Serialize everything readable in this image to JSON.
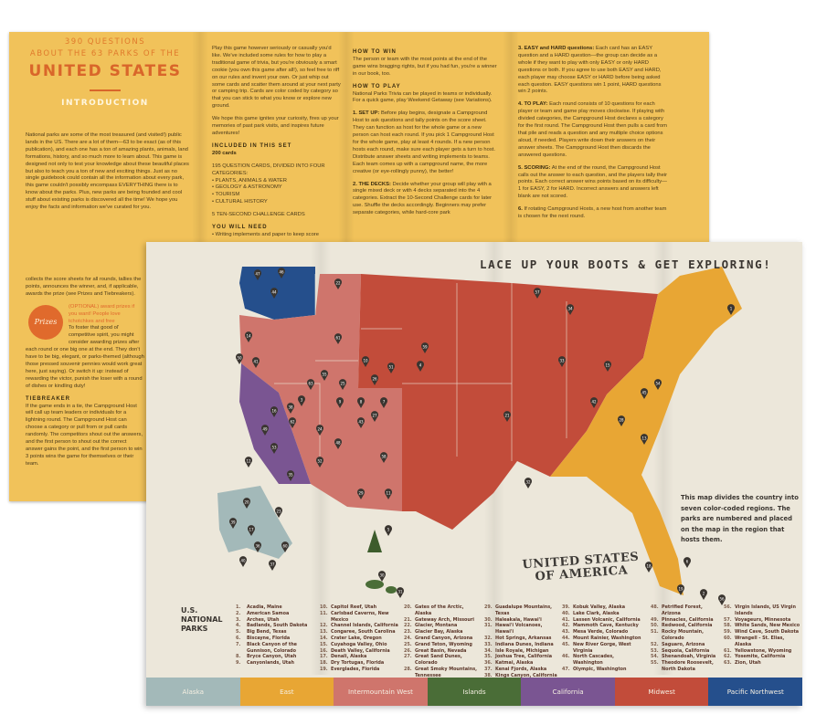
{
  "back": {
    "kicker1": "390 QUESTIONS",
    "kicker2": "ABOUT THE 63 PARKS OF THE",
    "headline": "UNITED STATES",
    "intro_heading": "INTRODUCTION",
    "intro_text": "National parks are some of the most treasured (and visited!) public lands in the US. There are a lot of them—63 to be exact (as of this publication), and each one has a ton of amazing plants, animals, land formations, history, and so much more to learn about. This game is designed not only to test your knowledge about these beautiful places but also to teach you a ton of new and exciting things. Just as no single guidebook could contain all the information about every park, this game couldn't possibly encompass EVERYTHING there is to know about the parks. Plus, new parks are being founded and cool stuff about existing parks is discovered all the time! We hope you enjoy the facts and information we've curated for you.",
    "score_text": "collects the score sheets for all rounds, tallies the points, announces the winner, and, if applicable, awards the prize (see Prizes and Tiebreakers).",
    "prizes_badge": "Prizes",
    "prizes_optional": "(OPTIONAL) award prizes if you want! People love tchotchkes and free",
    "prizes_text": "To foster that good ol' competitive spirit, you might consider awarding prizes after each round or one big one at the end. They don't have to be big, elegant, or parks-themed (although those pressed souvenir pennies would work great here, just saying). Or switch it up: instead of rewarding the victor, punish the loser with a round of dishes or kindling duty!",
    "tiebreaker_heading": "TIEBREAKER",
    "tiebreaker_text": "If the game ends in a tie, the Campground Host will call up team leaders or individuals for a lightning round. The Campground Host can choose a category or pull from or pull cards randomly. The competitors shout out the answers, and the first person to shout out the correct answer gains the point, and the first person to win 3 points wins the game for themselves or their team.",
    "play_text": "Play this game however seriously or casually you'd like. We've included some rules for how to play a traditional game of trivia, but you're obviously a smart cookie (you own this game after all!), so feel free to riff on our rules and invent your own. Or just whip out some cards and scatter them around at your next party or camping trip. Cards are color coded by category so that you can stick to what you know or explore new ground.",
    "hope_text": "We hope this game ignites your curiosity, fires up your memories of past park visits, and inspires future adventures!",
    "included_heading": "INCLUDED IN THIS SET",
    "included_count": "200 cards",
    "categories_intro": "195 QUESTION CARDS, DIVIDED INTO FOUR CATEGORIES:",
    "categories": [
      "PLANTS, ANIMALS & WATER",
      "GEOLOGY & ASTRONOMY",
      "TOURISM",
      "CULTURAL HISTORY"
    ],
    "challenge": "5 TEN-SECOND CHALLENGE CARDS",
    "need_heading": "YOU WILL NEED",
    "need_item": "Writing implements and paper to keep score",
    "win_heading": "HOW TO WIN",
    "win_text": "The person or team with the most points at the end of the game wins bragging rights, but if you had fun, you're a winner in our book, too.",
    "play_heading": "HOW TO PLAY",
    "howplay_text": "National Parks Trivia can be played in teams or individually. For a quick game, play Weekend Getaway (see Variations).",
    "steps": [
      {
        "label": "1. SET UP:",
        "text": "Before play begins, designate a Campground Host to ask questions and tally points on the score sheet. They can function as host for the whole game or a new person can host each round. If you pick 1 Campground Host for the whole game, play at least 4 rounds. If a new person hosts each round, make sure each player gets a turn to host. Distribute answer sheets and writing implements to teams. Each team comes up with a campground name, the more creative (or eye-rollingly punny), the better!"
      },
      {
        "label": "2. THE DECKS:",
        "text": "Decide whether your group will play with a single mixed deck or with 4 decks separated into the 4 categories. Extract the 10-Second Challenge cards for later use. Shuffle the decks accordingly. Beginners may prefer separate categories, while hard-core park"
      },
      {
        "label": "3. EASY and HARD questions:",
        "text": "Each card has an EASY question and a HARD question—the group can decide as a whole if they want to play with only EASY or only HARD questions or both. If you agree to use both EASY and HARD, each player may choose EASY or HARD before being asked each question. EASY questions win 1 point, HARD questions win 2 points."
      },
      {
        "label": "4. TO PLAY:",
        "text": "Each round consists of 10 questions for each player or team and game play moves clockwise. If playing with divided categories, the Campground Host declares a category for the first round. The Campground Host then pulls a card from that pile and reads a question and any multiple choice options aloud, if needed. Players write down their answers on their answer sheets. The Campground Host then discards the answered questions."
      },
      {
        "label": "5. SCORING:",
        "text": "At the end of the round, the Campground Host calls out the answer to each question, and the players tally their points. Each correct answer wins points based on its difficulty—1 for EASY, 2 for HARD. Incorrect answers and answers left blank are not scored."
      },
      {
        "label": "6.",
        "text": "If rotating Campground Hosts, a new host from another team is chosen for the next round."
      }
    ]
  },
  "map": {
    "title": "LACE UP YOUR BOOTS & GET EXPLORING!",
    "country_line1": "UNITED STATES",
    "country_line2": "OF AMERICA",
    "note": "This map divides the country into seven color-coded regions. The parks are numbered and placed on the map in the region that hosts them.",
    "legend_title": "U.S. NATIONAL PARKS",
    "regions": [
      {
        "name": "Alaska",
        "color": "#a3b9b9"
      },
      {
        "name": "East",
        "color": "#e8a634"
      },
      {
        "name": "Intermountain West",
        "color": "#cf756c"
      },
      {
        "name": "Islands",
        "color": "#4a6d37"
      },
      {
        "name": "California",
        "color": "#7a5592"
      },
      {
        "name": "Midwest",
        "color": "#c24c3a"
      },
      {
        "name": "Pacific Northwest",
        "color": "#254f8c"
      }
    ],
    "parks": [
      [
        "1.",
        "Acadia, Maine"
      ],
      [
        "2.",
        "American Samoa"
      ],
      [
        "3.",
        "Arches, Utah"
      ],
      [
        "4.",
        "Badlands, South Dakota"
      ],
      [
        "5.",
        "Big Bend, Texas"
      ],
      [
        "6.",
        "Biscayne, Florida"
      ],
      [
        "7.",
        "Black Canyon of the Gunnison, Colorado"
      ],
      [
        "8.",
        "Bryce Canyon, Utah"
      ],
      [
        "9.",
        "Canyonlands, Utah"
      ],
      [
        "10.",
        "Capitol Reef, Utah"
      ],
      [
        "11.",
        "Carlsbad Caverns, New Mexico"
      ],
      [
        "12.",
        "Channel Islands, California"
      ],
      [
        "13.",
        "Congaree, South Carolina"
      ],
      [
        "14.",
        "Crater Lake, Oregon"
      ],
      [
        "15.",
        "Cuyahoga Valley, Ohio"
      ],
      [
        "16.",
        "Death Valley, California"
      ],
      [
        "17.",
        "Denali, Alaska"
      ],
      [
        "18.",
        "Dry Tortugas, Florida"
      ],
      [
        "19.",
        "Everglades, Florida"
      ],
      [
        "20.",
        "Gates of the Arctic, Alaska"
      ],
      [
        "21.",
        "Gateway Arch, Missouri"
      ],
      [
        "22.",
        "Glacier, Montana"
      ],
      [
        "23.",
        "Glacier Bay, Alaska"
      ],
      [
        "24.",
        "Grand Canyon, Arizona"
      ],
      [
        "25.",
        "Grand Teton, Wyoming"
      ],
      [
        "26.",
        "Great Basin, Nevada"
      ],
      [
        "27.",
        "Great Sand Dunes, Colorado"
      ],
      [
        "28.",
        "Great Smoky Mountains, Tennessee"
      ],
      [
        "29.",
        "Guadalupe Mountains, Texas"
      ],
      [
        "30.",
        "Haleakala, Hawai'i"
      ],
      [
        "31.",
        "Hawai'i Volcanoes, Hawai'i"
      ],
      [
        "32.",
        "Hot Springs, Arkansas"
      ],
      [
        "33.",
        "Indiana Dunes, Indiana"
      ],
      [
        "34.",
        "Isle Royale, Michigan"
      ],
      [
        "35.",
        "Joshua Tree, California"
      ],
      [
        "36.",
        "Katmai, Alaska"
      ],
      [
        "37.",
        "Kenai Fjords, Alaska"
      ],
      [
        "38.",
        "Kings Canyon, California"
      ],
      [
        "39.",
        "Kobuk Valley, Alaska"
      ],
      [
        "40.",
        "Lake Clark, Alaska"
      ],
      [
        "41.",
        "Lassen Volcanic, California"
      ],
      [
        "42.",
        "Mammoth Cave, Kentucky"
      ],
      [
        "43.",
        "Mesa Verde, Colorado"
      ],
      [
        "44.",
        "Mount Rainier, Washington"
      ],
      [
        "45.",
        "New River Gorge, West Virginia"
      ],
      [
        "46.",
        "North Cascades, Washington"
      ],
      [
        "47.",
        "Olympic, Washington"
      ],
      [
        "48.",
        "Petrified Forest, Arizona"
      ],
      [
        "49.",
        "Pinnacles, California"
      ],
      [
        "50.",
        "Redwood, California"
      ],
      [
        "51.",
        "Rocky Mountain, Colorado"
      ],
      [
        "52.",
        "Saguaro, Arizona"
      ],
      [
        "53.",
        "Sequoia, California"
      ],
      [
        "54.",
        "Shenandoah, Virginia"
      ],
      [
        "55.",
        "Theodore Roosevelt, North Dakota"
      ],
      [
        "56.",
        "Virgin Islands, US Virgin Islands"
      ],
      [
        "57.",
        "Voyageurs, Minnesota"
      ],
      [
        "58.",
        "White Sands, New Mexico"
      ],
      [
        "59.",
        "Wind Cave, South Dakota"
      ],
      [
        "60.",
        "Wrangell - St. Elias, Alaska"
      ],
      [
        "61.",
        "Yellowstone, Wyoming"
      ],
      [
        "62.",
        "Yosemite, California"
      ],
      [
        "63.",
        "Zion, Utah"
      ]
    ],
    "pins": [
      "47",
      "46",
      "44",
      "22",
      "14",
      "50",
      "41",
      "61",
      "25",
      "55",
      "26",
      "8",
      "3",
      "10",
      "7",
      "16",
      "62",
      "49",
      "53",
      "38",
      "35",
      "12",
      "9",
      "63",
      "24",
      "52",
      "48",
      "43",
      "51",
      "27",
      "11",
      "58",
      "29",
      "5",
      "59",
      "4",
      "21",
      "32",
      "57",
      "34",
      "33",
      "15",
      "42",
      "45",
      "28",
      "54",
      "13",
      "1",
      "19",
      "18",
      "6",
      "30",
      "31",
      "2",
      "20",
      "39",
      "36",
      "37",
      "40",
      "60",
      "17",
      "23",
      "56"
    ],
    "colors": {
      "paper": "#ece7da",
      "back": "#f1c25a",
      "accent": "#d9662a"
    }
  }
}
